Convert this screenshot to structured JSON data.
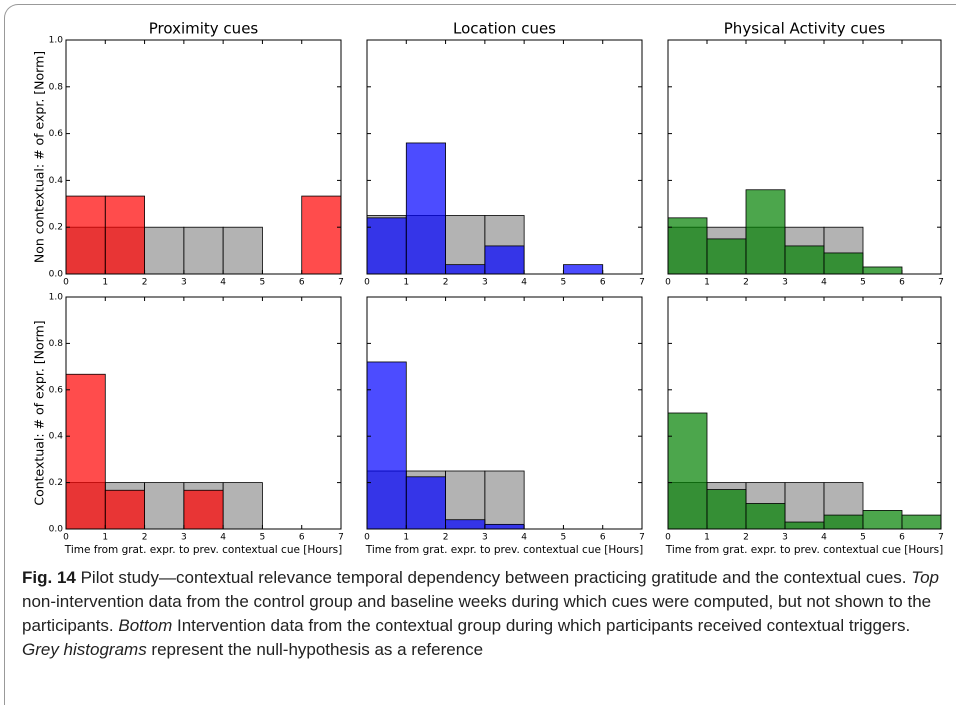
{
  "chart_data": [
    {
      "type": "histogram",
      "title": "Proximity cues",
      "ylabel": "Non contextual: # of expr. [Norm]",
      "bins": [
        0,
        1,
        2,
        3,
        4,
        5,
        6,
        7
      ],
      "series": [
        {
          "color": "#808080",
          "values": [
            0.2,
            0.2,
            0.2,
            0.2,
            0.2,
            0,
            0
          ]
        },
        {
          "color": "#ff0000",
          "values": [
            0.333,
            0.333,
            0,
            0,
            0,
            0,
            0.333
          ]
        }
      ],
      "xlim": [
        0,
        7
      ],
      "ylim": [
        0,
        1
      ],
      "xticks": [
        0,
        1,
        2,
        3,
        4,
        5,
        6,
        7
      ],
      "yticks": [
        {
          "value": 0,
          "label": "0.0"
        },
        {
          "value": 0.2,
          "label": "0.2"
        },
        {
          "value": 0.4,
          "label": "0.4"
        },
        {
          "value": 0.6,
          "label": "0.6"
        },
        {
          "value": 0.8,
          "label": "0.8"
        },
        {
          "value": 1,
          "label": "1.0"
        }
      ]
    },
    {
      "type": "histogram",
      "title": "Location cues",
      "bins": [
        0,
        1,
        2,
        3,
        4,
        5,
        6,
        7
      ],
      "series": [
        {
          "color": "#808080",
          "values": [
            0.25,
            0.25,
            0.25,
            0.25,
            0,
            0,
            0
          ]
        },
        {
          "color": "#0000ff",
          "values": [
            0.24,
            0.56,
            0.04,
            0.12,
            0,
            0.04,
            0
          ]
        }
      ],
      "xlim": [
        0,
        7
      ],
      "ylim": [
        0,
        1
      ],
      "xticks": [
        0,
        1,
        2,
        3,
        4,
        5,
        6,
        7
      ],
      "yticks": [
        0,
        0.2,
        0.4,
        0.6,
        0.8,
        1
      ]
    },
    {
      "type": "histogram",
      "title": "Physical Activity cues",
      "bins": [
        0,
        1,
        2,
        3,
        4,
        5,
        6,
        7
      ],
      "series": [
        {
          "color": "#808080",
          "values": [
            0.2,
            0.2,
            0.2,
            0.2,
            0.2,
            0,
            0
          ]
        },
        {
          "color": "#008000",
          "values": [
            0.24,
            0.15,
            0.36,
            0.12,
            0.09,
            0.03,
            0
          ]
        }
      ],
      "xlim": [
        0,
        7
      ],
      "ylim": [
        0,
        1
      ],
      "xticks": [
        0,
        1,
        2,
        3,
        4,
        5,
        6,
        7
      ],
      "yticks": [
        0,
        0.2,
        0.4,
        0.6,
        0.8,
        1
      ]
    },
    {
      "type": "histogram",
      "ylabel": "Contextual: # of expr. [Norm]",
      "xlabel": "Time from grat. expr. to prev. contextual cue [Hours]",
      "bins": [
        0,
        1,
        2,
        3,
        4,
        5,
        6,
        7
      ],
      "series": [
        {
          "color": "#808080",
          "values": [
            0.2,
            0.2,
            0.2,
            0.2,
            0.2,
            0,
            0
          ]
        },
        {
          "color": "#ff0000",
          "values": [
            0.667,
            0.167,
            0,
            0.167,
            0,
            0,
            0
          ]
        }
      ],
      "xlim": [
        0,
        7
      ],
      "ylim": [
        0,
        1
      ],
      "xticks": [
        0,
        1,
        2,
        3,
        4,
        5,
        6,
        7
      ],
      "yticks": [
        {
          "value": 0,
          "label": "0.0"
        },
        {
          "value": 0.2,
          "label": "0.2"
        },
        {
          "value": 0.4,
          "label": "0.4"
        },
        {
          "value": 0.6,
          "label": "0.6"
        },
        {
          "value": 0.8,
          "label": "0.8"
        },
        {
          "value": 1,
          "label": "1.0"
        }
      ]
    },
    {
      "type": "histogram",
      "xlabel": "Time from grat. expr. to prev. contextual cue [Hours]",
      "bins": [
        0,
        1,
        2,
        3,
        4,
        5,
        6,
        7
      ],
      "series": [
        {
          "color": "#808080",
          "values": [
            0.25,
            0.25,
            0.25,
            0.25,
            0,
            0,
            0
          ]
        },
        {
          "color": "#0000ff",
          "values": [
            0.72,
            0.225,
            0.04,
            0.02,
            0,
            0,
            0
          ]
        }
      ],
      "xlim": [
        0,
        7
      ],
      "ylim": [
        0,
        1
      ],
      "xticks": [
        0,
        1,
        2,
        3,
        4,
        5,
        6,
        7
      ],
      "yticks": [
        0,
        0.2,
        0.4,
        0.6,
        0.8,
        1
      ]
    },
    {
      "type": "histogram",
      "xlabel": "Time from grat. expr. to prev. contextual cue [Hours]",
      "bins": [
        0,
        1,
        2,
        3,
        4,
        5,
        6,
        7
      ],
      "series": [
        {
          "color": "#808080",
          "values": [
            0.2,
            0.2,
            0.2,
            0.2,
            0.2,
            0,
            0
          ]
        },
        {
          "color": "#008000",
          "values": [
            0.5,
            0.17,
            0.11,
            0.03,
            0.06,
            0.08,
            0.06
          ]
        }
      ],
      "xlim": [
        0,
        7
      ],
      "ylim": [
        0,
        1
      ],
      "xticks": [
        0,
        1,
        2,
        3,
        4,
        5,
        6,
        7
      ],
      "yticks": [
        0,
        0.2,
        0.4,
        0.6,
        0.8,
        1
      ]
    }
  ],
  "caption": {
    "label": "Fig. 14",
    "parts": [
      " Pilot study—contextual relevance temporal dependency between practicing gratitude and the contextual cues. ",
      "Top",
      " non-intervention data from the control group and baseline weeks during which cues were computed, but not shown to the participants. ",
      "Bottom",
      " Intervention data from the contextual group during which participants received contextual triggers. ",
      "Grey histograms",
      " represent the null-hypothesis as a reference"
    ]
  }
}
